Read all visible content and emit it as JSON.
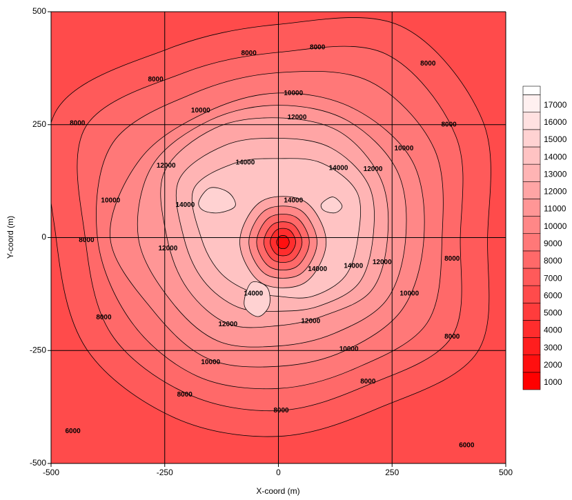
{
  "chart_data": {
    "type": "contour",
    "x_label": "X-coord (m)",
    "y_label": "Y-coord (m)",
    "xlim": [
      -500,
      500
    ],
    "ylim": [
      -500,
      500
    ],
    "xticks": [
      -500,
      -250,
      0,
      250,
      500
    ],
    "yticks": [
      -500,
      -250,
      0,
      250,
      500
    ],
    "grid": true,
    "colormap": [
      "#ff0000",
      "#ffffff"
    ],
    "levels": [
      1000,
      2000,
      3000,
      4000,
      5000,
      6000,
      7000,
      8000,
      9000,
      10000,
      11000,
      12000,
      13000,
      14000,
      15000,
      16000,
      17000
    ],
    "contours": [
      {
        "level": 7000,
        "x": [
          460,
          449,
          270,
          0,
          -242,
          -488,
          -489,
          -423,
          -230,
          0,
          219,
          438
        ],
        "y": [
          0,
          259,
          468,
          472,
          418,
          282,
          0,
          -245,
          -398,
          -440,
          -378,
          -253
        ]
      },
      {
        "level": 8000,
        "x": [
          400,
          390,
          235,
          0,
          -210,
          -424,
          -425,
          -368,
          -200,
          0,
          190,
          381
        ],
        "y": [
          0,
          225,
          407,
          410,
          364,
          245,
          0,
          -213,
          -346,
          -383,
          -329,
          -220
        ]
      },
      {
        "level": 9000,
        "x": [
          360,
          342,
          200,
          0,
          -185,
          -364,
          -398,
          -323,
          -178,
          0,
          168,
          327
        ],
        "y": [
          0,
          198,
          346,
          365,
          320,
          210,
          0,
          -187,
          -307,
          -334,
          -290,
          -189
        ]
      },
      {
        "level": 10000,
        "x": [
          320,
          294,
          165,
          0,
          -160,
          -303,
          -370,
          -277,
          -155,
          0,
          145,
          273
        ],
        "y": [
          0,
          170,
          286,
          320,
          277,
          175,
          0,
          -160,
          -268,
          -285,
          -251,
          -158
        ]
      },
      {
        "level": 11000,
        "x": [
          280,
          260,
          150,
          0,
          -150,
          -277,
          -308,
          -238,
          -133,
          0,
          123,
          238
        ],
        "y": [
          0,
          150,
          260,
          293,
          260,
          160,
          0,
          -138,
          -229,
          -240,
          -212,
          -138
        ]
      },
      {
        "level": 12000,
        "x": [
          240,
          225,
          135,
          0,
          -140,
          -251,
          -245,
          -199,
          -110,
          0,
          100,
          204
        ],
        "y": [
          0,
          130,
          234,
          265,
          242,
          145,
          0,
          -115,
          -191,
          -195,
          -173,
          -118
        ]
      },
      {
        "level": 13000,
        "x": [
          208,
          199,
          115,
          0,
          -118,
          -219,
          -208,
          -165,
          -89,
          0,
          88,
          176
        ],
        "y": [
          0,
          115,
          199,
          220,
          204,
          127,
          0,
          -95,
          -154,
          -163,
          -152,
          -102
        ]
      },
      {
        "level": 14000,
        "x": [
          175,
          173,
          95,
          0,
          -95,
          -186,
          -170,
          -130,
          -68,
          0,
          75,
          147
        ],
        "y": [
          0,
          100,
          165,
          175,
          165,
          108,
          0,
          -75,
          -117,
          -130,
          -130,
          -85
        ]
      },
      {
        "level": 15000,
        "x": [
          -175,
          -150,
          -110,
          -95,
          -130,
          -165
        ],
        "y": [
          80,
          110,
          100,
          70,
          55,
          60
        ]
      },
      {
        "level": 15000,
        "x": [
          95,
          120,
          140,
          125,
          100
        ],
        "y": [
          75,
          90,
          70,
          55,
          60
        ]
      },
      {
        "level": 15000,
        "x": [
          -60,
          -25,
          -20,
          -45,
          -75
        ],
        "y": [
          -100,
          -110,
          -150,
          -175,
          -150
        ]
      },
      {
        "level": 13000,
        "x": [
          105,
          58,
          -38,
          -85,
          -38,
          58
        ],
        "y": [
          -10,
          80,
          80,
          -10,
          -100,
          -100
        ]
      },
      {
        "level": 11000,
        "x": [
          85,
          48,
          -28,
          -65,
          -28,
          48
        ],
        "y": [
          -10,
          61,
          61,
          -10,
          -81,
          -81
        ]
      },
      {
        "level": 9000,
        "x": [
          68,
          39,
          -19,
          -48,
          -19,
          39
        ],
        "y": [
          -10,
          45,
          45,
          -10,
          -65,
          -65
        ]
      },
      {
        "level": 7000,
        "x": [
          52,
          31,
          -11,
          -32,
          -11,
          31
        ],
        "y": [
          -10,
          30,
          30,
          -10,
          -50,
          -50
        ]
      },
      {
        "level": 5000,
        "x": [
          38,
          24,
          -4,
          -18,
          -4,
          24
        ],
        "y": [
          -10,
          17,
          17,
          -10,
          -37,
          -37
        ]
      },
      {
        "level": 3000,
        "x": [
          24,
          17,
          3,
          -4,
          3,
          17
        ],
        "y": [
          -10,
          3,
          3,
          -10,
          -23,
          -23
        ]
      }
    ],
    "contour_labels": [
      {
        "value": 8000,
        "x": -270,
        "y": 350
      },
      {
        "value": 8000,
        "x": -442,
        "y": 253
      },
      {
        "value": 8000,
        "x": -65,
        "y": 408
      },
      {
        "value": 8000,
        "x": 86,
        "y": 421
      },
      {
        "value": 8000,
        "x": 329,
        "y": 385
      },
      {
        "value": 8000,
        "x": 375,
        "y": 250
      },
      {
        "value": 8000,
        "x": 382,
        "y": -47
      },
      {
        "value": 8000,
        "x": 382,
        "y": -220
      },
      {
        "value": 8000,
        "x": 197,
        "y": -319
      },
      {
        "value": 8000,
        "x": 6,
        "y": -383
      },
      {
        "value": 8000,
        "x": -206,
        "y": -348
      },
      {
        "value": 8000,
        "x": -384,
        "y": -177
      },
      {
        "value": 8000,
        "x": -422,
        "y": -6
      },
      {
        "value": 6000,
        "x": -452,
        "y": -429
      },
      {
        "value": 6000,
        "x": 414,
        "y": -460
      },
      {
        "value": 10000,
        "x": -369,
        "y": 82
      },
      {
        "value": 10000,
        "x": -171,
        "y": 281
      },
      {
        "value": 10000,
        "x": 33,
        "y": 319
      },
      {
        "value": 10000,
        "x": 276,
        "y": 197
      },
      {
        "value": 10000,
        "x": 288,
        "y": -124
      },
      {
        "value": 10000,
        "x": 155,
        "y": -247
      },
      {
        "value": 10000,
        "x": -149,
        "y": -276
      },
      {
        "value": 12000,
        "x": -247,
        "y": 159
      },
      {
        "value": 12000,
        "x": 41,
        "y": 266
      },
      {
        "value": 12000,
        "x": 208,
        "y": 151
      },
      {
        "value": 12000,
        "x": 228,
        "y": -55
      },
      {
        "value": 12000,
        "x": 71,
        "y": -185
      },
      {
        "value": 12000,
        "x": -111,
        "y": -192
      },
      {
        "value": 12000,
        "x": -243,
        "y": -24
      },
      {
        "value": 14000,
        "x": -205,
        "y": 72
      },
      {
        "value": 14000,
        "x": -73,
        "y": 166
      },
      {
        "value": 14000,
        "x": 132,
        "y": 154
      },
      {
        "value": 14000,
        "x": 165,
        "y": -63
      },
      {
        "value": 14000,
        "x": -55,
        "y": -124
      },
      {
        "value": 14000,
        "x": 33,
        "y": 82
      },
      {
        "value": 14000,
        "x": 86,
        "y": -70
      }
    ]
  }
}
